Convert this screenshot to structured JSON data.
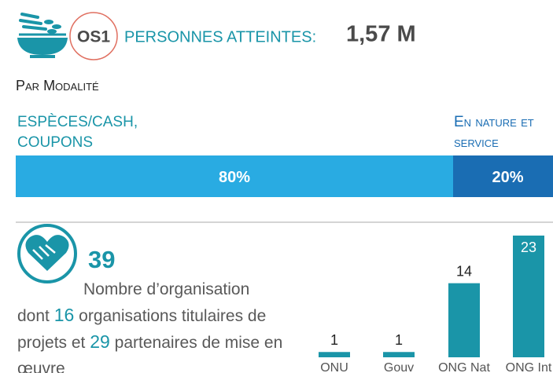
{
  "header": {
    "code": "OS1",
    "label": "PERSONNES ATTEINTES:",
    "value": "1,57 M"
  },
  "modality": {
    "title": "Par Modalité",
    "chart_data": {
      "type": "stacked-bar-100",
      "categories": [
        "ESPÈCES/CASH, COUPONS",
        "En nature et service"
      ],
      "values": [
        80,
        20
      ],
      "value_labels": [
        "80%",
        "20%"
      ],
      "colors": [
        "#29abe2",
        "#1a6db3"
      ]
    }
  },
  "organisations": {
    "count": "39",
    "text_1": "Nombre d’organisation",
    "text_2": "dont",
    "holders": "16",
    "text_3": "organisations titulaires de projets et",
    "partners": "29",
    "text_4": "partenaires de mise en œuvre"
  },
  "chart_data": {
    "type": "bar",
    "categories": [
      "ONU",
      "Gouv",
      "ONG Nat",
      "ONG Int"
    ],
    "values": [
      1,
      1,
      14,
      23
    ],
    "color": "#1a95a8"
  }
}
